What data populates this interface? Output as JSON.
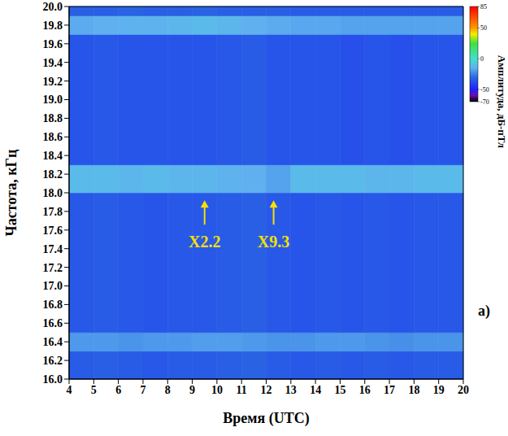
{
  "chart_data": {
    "type": "heatmap",
    "x_label": "Время (UTC)",
    "y_label": "Частота, кГц",
    "xlim": [
      4,
      20
    ],
    "xticks": [
      4,
      5,
      6,
      7,
      8,
      9,
      10,
      11,
      12,
      13,
      14,
      15,
      16,
      17,
      18,
      19,
      20
    ],
    "ylim": [
      16,
      20
    ],
    "yticks": [
      {
        "value": 16,
        "label": "16.0"
      },
      16.2,
      16.4,
      16.6,
      16.8,
      {
        "value": 17,
        "label": "17.0"
      },
      17.2,
      17.4,
      17.6,
      17.8,
      {
        "value": 18,
        "label": "18.0"
      },
      18.2,
      18.4,
      18.6,
      18.8,
      {
        "value": 19,
        "label": "19.0"
      },
      19.2,
      19.4,
      19.6,
      19.8,
      {
        "value": 20,
        "label": "20.0"
      }
    ],
    "x_bins": [
      4,
      5,
      6,
      7,
      8,
      9,
      10,
      11,
      12,
      13,
      14,
      15,
      16,
      17,
      18,
      19,
      20
    ],
    "y_bins": [
      16.0,
      16.3,
      16.5,
      18.0,
      18.3,
      19.7,
      19.9,
      20.0
    ],
    "cells": [
      [
        -34,
        -33,
        -34,
        -35,
        -34,
        -34,
        -33,
        -32,
        -34,
        -35,
        -34,
        -35,
        -34,
        -35,
        -34,
        -34
      ],
      [
        -20,
        -20,
        -21,
        -20,
        -20,
        -19,
        -19,
        -20,
        -21,
        -21,
        -20,
        -20,
        -21,
        -22,
        -21,
        -21
      ],
      [
        -35,
        -34,
        -35,
        -36,
        -35,
        -35,
        -34,
        -33,
        -35,
        -36,
        -35,
        -36,
        -35,
        -36,
        -35,
        -35
      ],
      [
        -12,
        -12,
        -13,
        -12,
        -13,
        -13,
        -14,
        -15,
        -18,
        -12,
        -12,
        -12,
        -13,
        -13,
        -12,
        -12
      ],
      [
        -36,
        -35,
        -36,
        -36,
        -36,
        -36,
        -35,
        -34,
        -36,
        -36,
        -36,
        -37,
        -36,
        -37,
        -36,
        -36
      ],
      [
        -16,
        -15,
        -14,
        -14,
        -13,
        -12,
        -13,
        -15,
        -16,
        -17,
        -17,
        -18,
        -18,
        -18,
        -18,
        -18
      ],
      [
        -33,
        -33,
        -32,
        -33,
        -33,
        -32,
        -33,
        -33,
        -33,
        -34,
        -34,
        -34,
        -34,
        -34,
        -34,
        -34
      ]
    ],
    "colorbar": {
      "label": "Амплитуда, дБ-пТл",
      "range": [
        -70,
        85
      ],
      "ticks": [
        85,
        50,
        0,
        -50,
        -70
      ]
    },
    "annotations": [
      {
        "text": "X2.2",
        "x": 9.5,
        "y": 17.92
      },
      {
        "text": "X9.3",
        "x": 12.3,
        "y": 17.92
      }
    ],
    "panel_label": "a)"
  }
}
